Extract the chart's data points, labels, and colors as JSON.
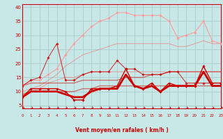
{
  "xlabel": "Vent moyen/en rafales ( km/h )",
  "xlim": [
    0,
    23
  ],
  "ylim": [
    4,
    41
  ],
  "yticks": [
    5,
    10,
    15,
    20,
    25,
    30,
    35,
    40
  ],
  "xticks": [
    0,
    1,
    2,
    3,
    4,
    5,
    6,
    7,
    8,
    9,
    10,
    11,
    12,
    13,
    14,
    15,
    16,
    17,
    18,
    19,
    20,
    21,
    22,
    23
  ],
  "bg_color": "#c8e8e8",
  "grid_color": "#aacccc",
  "lines": [
    {
      "x": [
        0,
        1,
        2,
        3,
        4,
        5,
        6,
        7,
        8,
        9,
        10,
        11,
        12,
        13,
        14,
        15,
        16,
        17,
        18,
        19,
        20,
        21,
        22,
        23
      ],
      "y": [
        8,
        11,
        11,
        11,
        11,
        10,
        7,
        7,
        11,
        11,
        11,
        12,
        18,
        12,
        11,
        13,
        10,
        13,
        12,
        12,
        12,
        19,
        13,
        13
      ],
      "color": "#cc0000",
      "lw": 1.0,
      "marker": "D",
      "markersize": 1.8,
      "alpha": 1.0,
      "zorder": 5
    },
    {
      "x": [
        0,
        1,
        2,
        3,
        4,
        5,
        6,
        7,
        8,
        9,
        10,
        11,
        12,
        13,
        14,
        15,
        16,
        17,
        18,
        19,
        20,
        21,
        22,
        23
      ],
      "y": [
        8,
        10,
        10,
        10,
        10,
        9,
        8,
        8,
        10,
        11,
        11,
        11,
        16,
        12,
        11,
        12,
        10,
        12,
        12,
        12,
        12,
        17,
        12,
        12
      ],
      "color": "#cc0000",
      "lw": 2.0,
      "marker": null,
      "markersize": 0,
      "alpha": 1.0,
      "zorder": 4
    },
    {
      "x": [
        0,
        1,
        2,
        3,
        4,
        5,
        6,
        7,
        8,
        9,
        10,
        11,
        12,
        13,
        14,
        15,
        16,
        17,
        18,
        19,
        20,
        21,
        22,
        23
      ],
      "y": [
        9,
        10,
        10,
        10,
        10,
        10,
        10,
        11,
        11,
        12,
        12,
        12,
        12,
        12,
        12,
        12,
        12,
        12,
        12,
        12,
        12,
        12,
        12,
        12
      ],
      "color": "#cc0000",
      "lw": 1.0,
      "marker": null,
      "markersize": 0,
      "alpha": 0.5,
      "zorder": 3
    },
    {
      "x": [
        0,
        1,
        2,
        3,
        4,
        5,
        6,
        7,
        8,
        9,
        10,
        11,
        12,
        13,
        14,
        15,
        16,
        17,
        18,
        19,
        20,
        21,
        22,
        23
      ],
      "y": [
        12,
        13,
        13,
        13,
        13,
        13,
        13,
        14,
        14,
        14,
        14,
        14,
        15,
        15,
        15,
        16,
        16,
        17,
        17,
        17,
        17,
        17,
        17,
        17
      ],
      "color": "#cc0000",
      "lw": 1.0,
      "marker": null,
      "markersize": 0,
      "alpha": 0.5,
      "zorder": 3
    },
    {
      "x": [
        0,
        1,
        2,
        3,
        4,
        5,
        6,
        7,
        8,
        9,
        10,
        11,
        12,
        13,
        14,
        15,
        16,
        17,
        18,
        19,
        20,
        21,
        22,
        23
      ],
      "y": [
        12,
        14,
        15,
        22,
        27,
        14,
        14,
        16,
        17,
        17,
        17,
        21,
        18,
        18,
        16,
        16,
        16,
        17,
        17,
        13,
        13,
        13,
        13,
        13
      ],
      "color": "#cc0000",
      "lw": 0.8,
      "marker": "D",
      "markersize": 1.8,
      "alpha": 0.75,
      "zorder": 4
    },
    {
      "x": [
        0,
        1,
        2,
        3,
        4,
        5,
        6,
        7,
        8,
        9,
        10,
        11,
        12,
        13,
        14,
        15,
        16,
        17,
        18,
        19,
        20,
        21,
        22,
        23
      ],
      "y": [
        8,
        10,
        11,
        13,
        14,
        15,
        15,
        16,
        17,
        17,
        17,
        17,
        17,
        17,
        17,
        17,
        17,
        17,
        17,
        17,
        17,
        17,
        17,
        17
      ],
      "color": "#ee7777",
      "lw": 0.8,
      "marker": null,
      "markersize": 0,
      "alpha": 0.6,
      "zorder": 2
    },
    {
      "x": [
        0,
        1,
        2,
        3,
        4,
        5,
        6,
        7,
        8,
        9,
        10,
        11,
        12,
        13,
        14,
        15,
        16,
        17,
        18,
        19,
        20,
        21,
        22,
        23
      ],
      "y": [
        10,
        11,
        12,
        14,
        16,
        19,
        21,
        23,
        24,
        25,
        26,
        27,
        27,
        27,
        27,
        27,
        27,
        27,
        26,
        26,
        27,
        28,
        27,
        27
      ],
      "color": "#ee7777",
      "lw": 0.8,
      "marker": null,
      "markersize": 0,
      "alpha": 0.6,
      "zorder": 2
    },
    {
      "x": [
        0,
        1,
        2,
        3,
        4,
        5,
        6,
        7,
        8,
        9,
        10,
        11,
        12,
        13,
        14,
        15,
        16,
        17,
        18,
        19,
        20,
        21,
        22,
        23
      ],
      "y": [
        12,
        14,
        14,
        16,
        18,
        23,
        27,
        30,
        33,
        35,
        36,
        38,
        38,
        37,
        37,
        37,
        37,
        35,
        29,
        30,
        31,
        35,
        28,
        27
      ],
      "color": "#ff9999",
      "lw": 0.9,
      "marker": "D",
      "markersize": 1.8,
      "alpha": 0.85,
      "zorder": 3
    }
  ],
  "label_color": "#cc0000",
  "tick_color": "#cc0000",
  "axis_color": "#cc0000",
  "xlabel_fontsize": 5.5,
  "xlabel_fontweight": "bold",
  "tick_fontsize_x": 4.0,
  "tick_fontsize_y": 5.0
}
